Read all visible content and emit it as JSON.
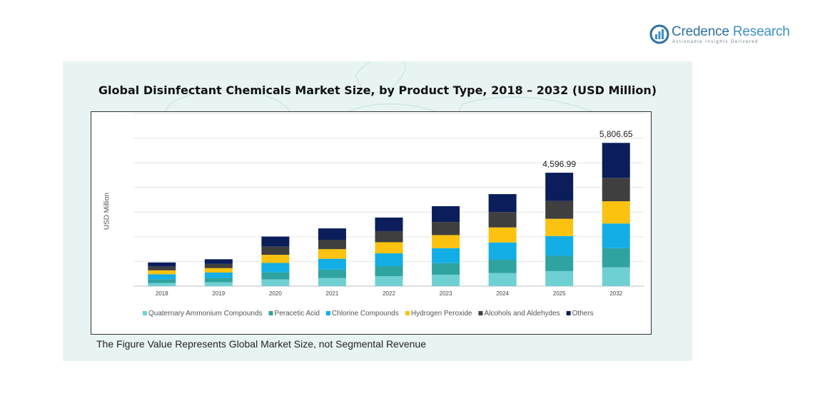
{
  "logo": {
    "name_part1": "Credence",
    "name_part2": "Research",
    "tagline": "Actionable Insights Delivered"
  },
  "title": "Global Disinfectant Chemicals Market Size, by Product Type, 2018 – 2032 (USD Million)",
  "footnote": "The Figure Value Represents Global Market Size, not Segmental Revenue",
  "colors": {
    "quaternary": "#6fd0d4",
    "peracetic": "#2fa3a0",
    "chlorine": "#13aee6",
    "hydrogen": "#fbc20f",
    "alcohols": "#3f3f3f",
    "others": "#0b1e5b",
    "panel_bg": "#e8f4f3"
  },
  "chart_data": {
    "type": "bar",
    "stacked": true,
    "title": "Global Disinfectant Chemicals Market Size, by Product Type, 2018 – 2032 (USD Million)",
    "ylabel": "USD Million",
    "xlabel": "",
    "ylim": [
      0,
      7000
    ],
    "grid": true,
    "legend_position": "bottom",
    "categories": [
      "2018",
      "2019",
      "2020",
      "2021",
      "2022",
      "2023",
      "2024",
      "2025",
      "2032"
    ],
    "series": [
      {
        "name": "Quaternary Ammonium Compounds",
        "color": "#6fd0d4",
        "values": [
          130,
          160,
          270,
          330,
          400,
          460,
          530,
          610,
          760
        ]
      },
      {
        "name": "Peracetic Acid",
        "color": "#2fa3a0",
        "values": [
          150,
          170,
          290,
          340,
          410,
          470,
          540,
          620,
          780
        ]
      },
      {
        "name": "Chlorine Compounds",
        "color": "#13aee6",
        "values": [
          200,
          220,
          380,
          440,
          520,
          610,
          700,
          800,
          1000
        ]
      },
      {
        "name": "Hydrogen Peroxide",
        "color": "#fbc20f",
        "values": [
          160,
          180,
          330,
          390,
          450,
          530,
          610,
          700,
          900
        ]
      },
      {
        "name": "Alcohols and Aldehydes",
        "color": "#3f3f3f",
        "values": [
          150,
          170,
          330,
          380,
          450,
          530,
          620,
          720,
          950
        ]
      },
      {
        "name": "Others",
        "color": "#0b1e5b",
        "values": [
          170,
          190,
          410,
          460,
          550,
          640,
          730,
          1147,
          1417
        ]
      }
    ],
    "data_labels": [
      {
        "category": "2025",
        "text": "4,596.99"
      },
      {
        "category": "2032",
        "text": "5,806.65"
      }
    ]
  }
}
